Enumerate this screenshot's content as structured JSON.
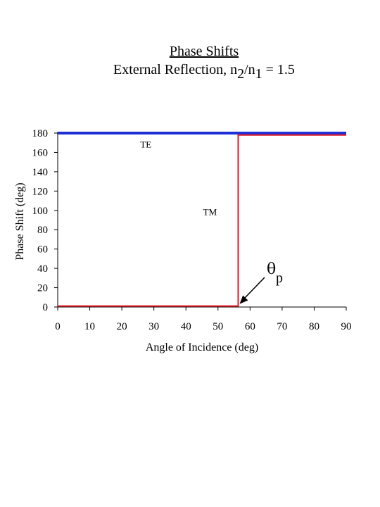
{
  "title_line1": "Phase Shifts",
  "title_line2": {
    "prefix": "External Reflection, n",
    "sub1": "2",
    "mid": "/n",
    "sub2": "1",
    "suffix": " = 1.5"
  },
  "chart_data": {
    "type": "line",
    "xlabel": "Angle of Incidence (deg)",
    "ylabel": "Phase Shift (deg)",
    "xlim": [
      0,
      90
    ],
    "ylim": [
      0,
      180
    ],
    "xticks": [
      0,
      10,
      20,
      30,
      40,
      50,
      60,
      70,
      80,
      90
    ],
    "yticks": [
      0,
      20,
      40,
      60,
      80,
      100,
      120,
      140,
      160,
      180
    ],
    "grid": false,
    "series": [
      {
        "name": "TE",
        "color": "#1f2fd6",
        "x": [
          0,
          90
        ],
        "y": [
          180,
          180
        ]
      },
      {
        "name": "TM",
        "color": "#e01b24",
        "x": [
          0,
          56.3,
          56.3,
          90
        ],
        "y": [
          1,
          1,
          178,
          178
        ]
      }
    ],
    "annotations": [
      {
        "text": "TE",
        "x": 27.5,
        "y": 165
      },
      {
        "text": "TM",
        "x": 47.5,
        "y": 95
      }
    ],
    "brewster": {
      "symbol": "θ",
      "sub": "p",
      "x": 56.3,
      "y": 1
    }
  }
}
